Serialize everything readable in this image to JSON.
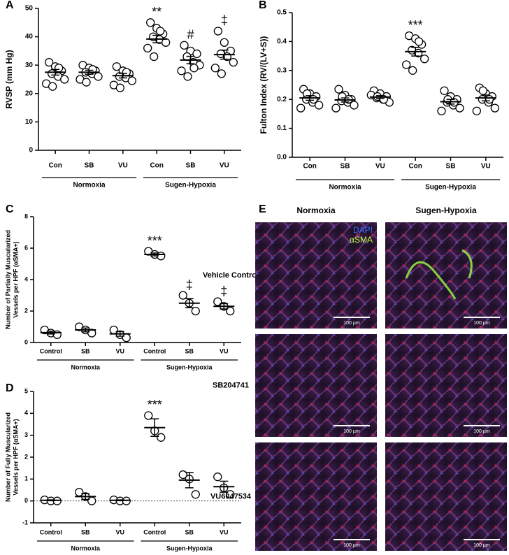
{
  "chart_data": [
    {
      "type": "dot",
      "panel": "A",
      "ylabel": [
        "RVSP (mm Hg)"
      ],
      "categories": [
        "Con",
        "SB",
        "VU",
        "Con",
        "SB",
        "VU"
      ],
      "group_labels": [
        "Normoxia",
        "Sugen-Hypoxia"
      ],
      "points": [
        [
          31,
          29.5,
          28,
          27,
          26,
          25,
          23.5,
          22.5,
          29
        ],
        [
          30,
          29,
          28,
          27.5,
          27,
          26,
          25,
          24,
          28.5
        ],
        [
          29.5,
          28,
          27,
          26,
          25.5,
          24.5,
          23,
          22,
          27.5
        ],
        [
          45,
          43,
          41,
          40,
          39,
          38,
          36,
          33,
          42
        ],
        [
          37,
          35,
          34,
          33,
          31,
          30,
          28,
          26,
          29
        ],
        [
          42,
          38,
          35,
          34,
          33,
          31,
          29,
          27
        ]
      ],
      "mean": [
        27.5,
        27.5,
        26.3,
        39.2,
        31.8,
        33.7
      ],
      "sem": [
        1,
        0.7,
        0.8,
        1.3,
        1.3,
        1.6
      ],
      "annotations": [
        null,
        null,
        null,
        "**",
        "#",
        "‡"
      ],
      "ylim": [
        0,
        50
      ],
      "yticks": [
        0,
        10,
        20,
        30,
        40,
        50
      ],
      "marker_color": "#000000"
    },
    {
      "type": "dot",
      "panel": "B",
      "ylabel": [
        "Fulton Index (RV/(LV+S))"
      ],
      "categories": [
        "Con",
        "SB",
        "VU",
        "Con",
        "SB",
        "VU"
      ],
      "group_labels": [
        "Normoxia",
        "Sugen-Hypoxia"
      ],
      "points": [
        [
          0.235,
          0.22,
          0.21,
          0.2,
          0.19,
          0.18,
          0.17,
          0.22,
          0.2
        ],
        [
          0.235,
          0.215,
          0.2,
          0.195,
          0.19,
          0.18,
          0.17,
          0.21,
          0.2
        ],
        [
          0.23,
          0.22,
          0.21,
          0.205,
          0.2,
          0.19,
          0.215,
          0.21,
          0.2
        ],
        [
          0.42,
          0.41,
          0.39,
          0.37,
          0.36,
          0.34,
          0.32,
          0.3,
          0.4
        ],
        [
          0.23,
          0.21,
          0.2,
          0.19,
          0.18,
          0.17,
          0.16,
          0.2,
          0.19
        ],
        [
          0.24,
          0.22,
          0.21,
          0.2,
          0.19,
          0.17,
          0.16,
          0.23,
          0.2
        ]
      ],
      "mean": [
        0.205,
        0.198,
        0.208,
        0.365,
        0.192,
        0.205
      ],
      "sem": [
        0.008,
        0.007,
        0.005,
        0.015,
        0.008,
        0.01
      ],
      "annotations": [
        null,
        null,
        null,
        "***",
        null,
        null
      ],
      "ylim": [
        0,
        0.5
      ],
      "yticks": [
        {
          "value": 0,
          "label": "0.0"
        },
        0.1,
        0.2,
        0.3,
        0.4,
        0.5
      ],
      "marker_color": "#000000"
    },
    {
      "type": "dot",
      "panel": "C",
      "ylabel": [
        "Number of Partially Muscularized",
        "Vessels per HPF (αSMA+)"
      ],
      "categories": [
        "Control",
        "SB",
        "VU",
        "Control",
        "SB",
        "VU"
      ],
      "group_labels": [
        "Normoxia",
        "Sugen-Hypoxia"
      ],
      "points": [
        [
          0.8,
          0.6,
          0.5
        ],
        [
          1.0,
          0.8,
          0.6
        ],
        [
          0.8,
          0.5,
          0.3
        ],
        [
          5.8,
          5.6,
          5.5
        ],
        [
          3.0,
          2.5,
          2.0
        ],
        [
          2.6,
          2.3,
          2.0
        ]
      ],
      "mean": [
        0.63,
        0.8,
        0.55,
        5.6,
        2.5,
        2.3
      ],
      "sem": [
        0.09,
        0.12,
        0.15,
        0.09,
        0.29,
        0.17
      ],
      "annotations": [
        null,
        null,
        null,
        "***",
        "‡",
        "‡"
      ],
      "ylim": [
        0,
        8
      ],
      "yticks": [
        0,
        2,
        4,
        6,
        8
      ],
      "marker_color": "#000000"
    },
    {
      "type": "dot",
      "panel": "D",
      "ylabel": [
        "Number of Fully Muscularized",
        "Vessels per HPF (αSMA+)"
      ],
      "categories": [
        "Control",
        "SB",
        "VU",
        "Control",
        "SB",
        "VU"
      ],
      "group_labels": [
        "Normoxia",
        "Sugen-Hypoxia"
      ],
      "points": [
        [
          0.05,
          0,
          0
        ],
        [
          0.4,
          0.2,
          0
        ],
        [
          0.05,
          0,
          0
        ],
        [
          3.9,
          3.2,
          2.9
        ],
        [
          1.2,
          1.0,
          0.3
        ],
        [
          1.1,
          0.6,
          0.3
        ]
      ],
      "mean": [
        0.03,
        0.2,
        0.03,
        3.35,
        0.95,
        0.65
      ],
      "sem": [
        0.02,
        0.13,
        0.02,
        0.4,
        0.35,
        0.25
      ],
      "annotations": [
        null,
        null,
        null,
        "***",
        null,
        null
      ],
      "ylim": [
        -1,
        5
      ],
      "yticks": [
        -1,
        0,
        1,
        2,
        3,
        4,
        5
      ],
      "zero_line": true,
      "marker_color": "#000000"
    }
  ],
  "micrograph_panel": {
    "panel": "E",
    "columns": [
      "Normoxia",
      "Sugen-Hypoxia"
    ],
    "rows": [
      "Vehicle Control",
      "SB204741",
      "VU6047534"
    ],
    "legend": [
      {
        "text": "DAPI",
        "color": "#3a6fff"
      },
      {
        "text": "αSMA",
        "color": "#b8ff3a"
      }
    ],
    "scale_bar": "100 µm"
  }
}
